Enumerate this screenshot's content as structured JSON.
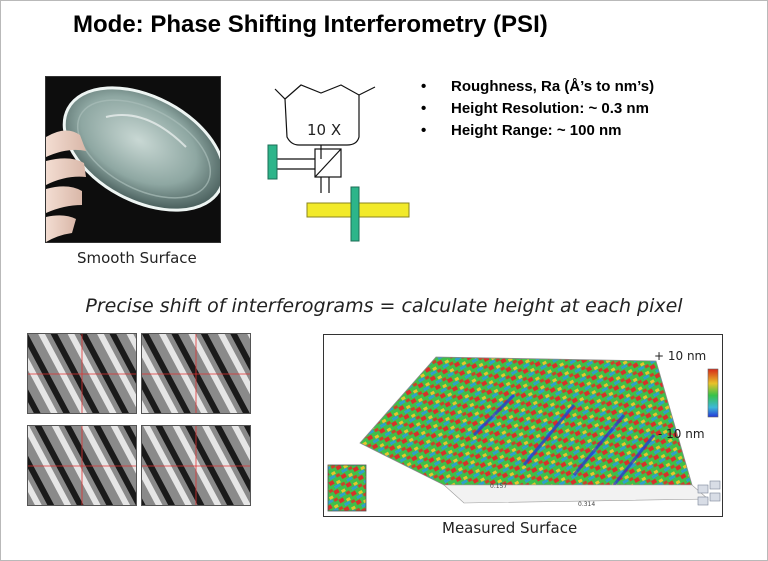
{
  "slide": {
    "title": "Mode: Phase Shifting Interferometry (PSI)",
    "smooth_caption": "Smooth Surface",
    "objective_label": "10 X",
    "bullets": [
      "Roughness, Ra  (Å’s to nm’s)",
      "Height Resolution:  ~ 0.3 nm",
      "Height Range: ~ 100 nm"
    ],
    "bullet_char": "•",
    "subtitle": "Precise shift of interferograms = calculate height at each pixel",
    "measured_caption": "Measured Surface",
    "scale_top": "+ 10 nm",
    "scale_bottom": "- 10 nm",
    "surface_axis_labels": [
      "0.157",
      "0.314"
    ],
    "colors": {
      "camera_block": "#2db58a",
      "stage_bar": "#f2ea2a",
      "fringe_crosshair": "#e03030",
      "scale_high": "#d62a1a",
      "scale_mid": "#36c24a",
      "scale_low": "#2436d8"
    }
  }
}
